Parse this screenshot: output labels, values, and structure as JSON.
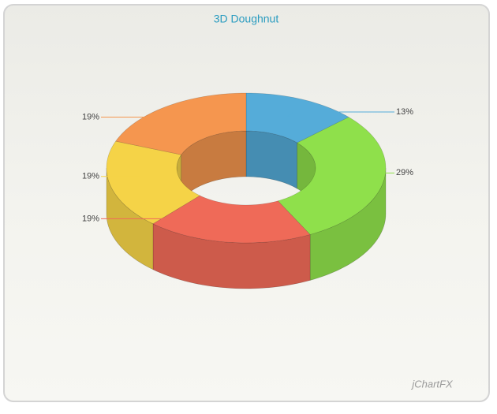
{
  "chart_data": {
    "type": "doughnut3d",
    "title": "3D Doughnut",
    "categories": [
      null,
      null,
      null,
      null,
      null
    ],
    "values": [
      13,
      29,
      19,
      19,
      19
    ],
    "value_labels": [
      "13%",
      "29%",
      "19%",
      "19%",
      "19%"
    ],
    "colors": [
      "#55acd9",
      "#8fe04b",
      "#ef6a58",
      "#f5d347",
      "#f5964f"
    ],
    "watermark": "jChartFX"
  }
}
